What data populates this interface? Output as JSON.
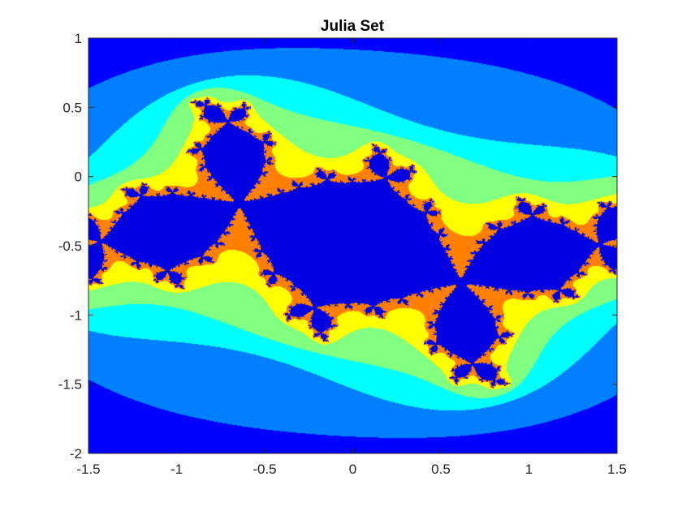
{
  "chart_data": {
    "type": "heatmap",
    "title": "Julia Set",
    "xlabel": "",
    "ylabel": "",
    "xlim": [
      -1.5,
      1.5
    ],
    "ylim": [
      -2,
      1
    ],
    "x_ticks": [
      -1.5,
      -1,
      -0.5,
      0,
      0.5,
      1,
      1.5
    ],
    "y_ticks": [
      -2,
      -1.5,
      -1,
      -0.5,
      0,
      0.5,
      1
    ],
    "x_tick_labels": [
      "-1.5",
      "-1",
      "-0.5",
      "0",
      "0.5",
      "1",
      "1.5"
    ],
    "y_tick_labels": [
      "-2",
      "-1.5",
      "-1",
      "-0.5",
      "0",
      "0.5",
      "1"
    ],
    "grid": false,
    "legend": "none",
    "colormap": [
      "#0000ff",
      "#0080ff",
      "#00ffff",
      "#80ff80",
      "#ffff00",
      "#ff8000",
      "#0000e0"
    ]
  }
}
